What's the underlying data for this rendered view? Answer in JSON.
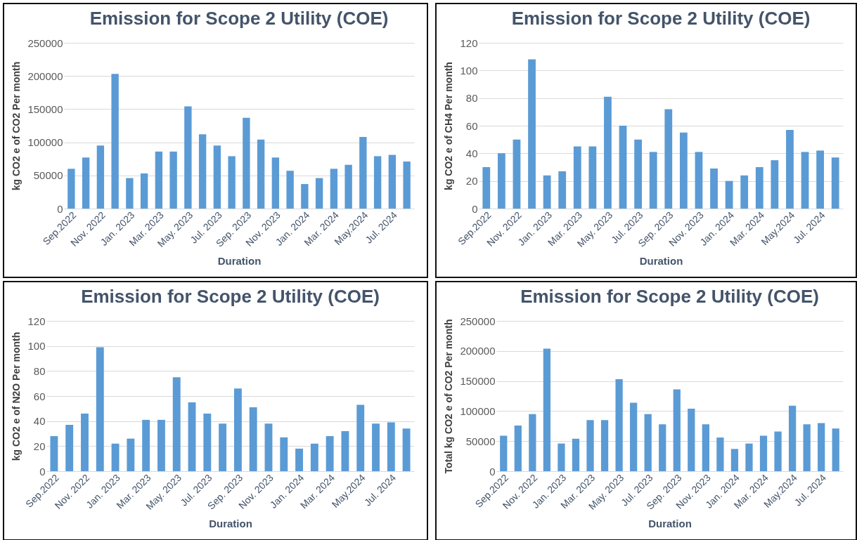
{
  "chart_data": [
    {
      "type": "bar",
      "title": "Emission for Scope 2 Utility (COE)",
      "xlabel": "Duration",
      "ylabel": "kg CO2 e of CO2  Per month",
      "color": "#5b9bd5",
      "grid": "y",
      "categories": [
        "Sep.2022",
        null,
        "Nov. 2022",
        null,
        "Jan. 2023",
        null,
        "Mar. 2023",
        null,
        "May. 2023",
        null,
        "Jul. 2023",
        null,
        "Sep. 2023",
        null,
        "Nov. 2023",
        null,
        "Jan. 2024",
        null,
        "Mar. 2024",
        null,
        "May.2024",
        null,
        "Jul. 2024",
        null
      ],
      "values": [
        60000,
        77000,
        95000,
        203000,
        46000,
        53000,
        86000,
        86000,
        154000,
        112000,
        95000,
        79000,
        137000,
        104000,
        77000,
        57000,
        37000,
        46000,
        60000,
        66000,
        108000,
        79000,
        81000,
        71000
      ],
      "ylim": [
        0,
        250000
      ],
      "yticks": [
        0,
        50000,
        100000,
        150000,
        200000,
        250000
      ]
    },
    {
      "type": "bar",
      "title": "Emission for Scope 2 Utility (COE)",
      "xlabel": "Duration",
      "ylabel": "kg CO2 e of CH4  Per month",
      "color": "#5b9bd5",
      "grid": "y",
      "categories": [
        "Sep.2022",
        null,
        "Nov. 2022",
        null,
        "Jan. 2023",
        null,
        "Mar. 2023",
        null,
        "May. 2023",
        null,
        "Jul. 2023",
        null,
        "Sep. 2023",
        null,
        "Nov. 2023",
        null,
        "Jan. 2024",
        null,
        "Mar. 2024",
        null,
        "May.2024",
        null,
        "Jul. 2024",
        null
      ],
      "values": [
        30,
        40,
        50,
        108,
        24,
        27,
        45,
        45,
        81,
        60,
        50,
        41,
        72,
        55,
        41,
        29,
        20,
        24,
        30,
        35,
        57,
        41,
        42,
        37
      ],
      "ylim": [
        0,
        120
      ],
      "yticks": [
        0,
        20,
        40,
        60,
        80,
        100,
        120
      ]
    },
    {
      "type": "bar",
      "title": "Emission for Scope 2 Utility (COE)",
      "xlabel": "Duration",
      "ylabel": "kg CO2 e of N2O  Per month",
      "color": "#5b9bd5",
      "grid": "y",
      "categories": [
        "Sep.2022",
        null,
        "Nov. 2022",
        null,
        "Jan. 2023",
        null,
        "Mar. 2023",
        null,
        "May. 2023",
        null,
        "Jul. 2023",
        null,
        "Sep. 2023",
        null,
        "Nov. 2023",
        null,
        "Jan. 2024",
        null,
        "Mar. 2024",
        null,
        "May.2024",
        null,
        "Jul. 2024",
        null
      ],
      "values": [
        28,
        37,
        46,
        99,
        22,
        26,
        41,
        41,
        75,
        55,
        46,
        38,
        66,
        51,
        38,
        27,
        18,
        22,
        28,
        32,
        53,
        38,
        39,
        34
      ],
      "ylim": [
        0,
        120
      ],
      "yticks": [
        0,
        20,
        40,
        60,
        80,
        100,
        120
      ]
    },
    {
      "type": "bar",
      "title": "Emission for Scope 2 Utility (COE)",
      "xlabel": "Duration",
      "ylabel": "Total kg CO2 e of CO2  Per month",
      "color": "#5b9bd5",
      "grid": "y",
      "categories": [
        "Sep.2022",
        null,
        "Nov. 2022",
        null,
        "Jan. 2023",
        null,
        "Mar. 2023",
        null,
        "May. 2023",
        null,
        "Jul. 2023",
        null,
        "Sep. 2023",
        null,
        "Nov. 2023",
        null,
        "Jan. 2024",
        null,
        "Mar. 2024",
        null,
        "May.2024",
        null,
        "Jul. 2024",
        null
      ],
      "values": [
        59000,
        76000,
        95000,
        204000,
        46000,
        54000,
        85000,
        85000,
        153000,
        114000,
        95000,
        78000,
        136000,
        104000,
        78000,
        56000,
        37000,
        46000,
        59000,
        66000,
        109000,
        78000,
        80000,
        71000
      ],
      "ylim": [
        0,
        250000
      ],
      "yticks": [
        0,
        50000,
        100000,
        150000,
        200000,
        250000
      ]
    }
  ]
}
